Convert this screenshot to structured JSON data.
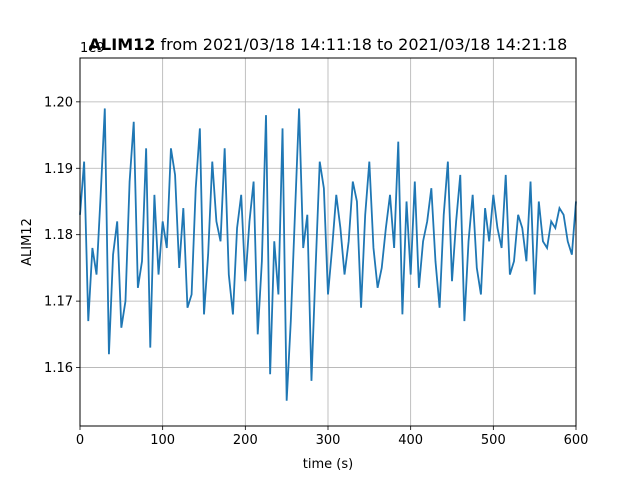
{
  "chart_data": {
    "type": "line",
    "title_bold": "ALIM12",
    "title_rest": " from 2021/03/18 14:11:18 to 2021/03/18 14:21:18",
    "xlabel": "time (s)",
    "ylabel": "ALIM12",
    "offset_label": "1e9",
    "xlim": [
      0,
      600
    ],
    "ylim": [
      1.1512,
      1.2066
    ],
    "x_ticks": [
      0,
      100,
      200,
      300,
      400,
      500,
      600
    ],
    "y_ticks": [
      1.16,
      1.17,
      1.18,
      1.19,
      1.2
    ],
    "y_tick_labels": [
      "1.16",
      "1.17",
      "1.18",
      "1.19",
      "1.20"
    ],
    "grid": true,
    "series_color": "#1f77b4",
    "series": [
      {
        "x_start": 0,
        "x_step": 5,
        "values": [
          1.183,
          1.191,
          1.167,
          1.178,
          1.174,
          1.186,
          1.199,
          1.162,
          1.177,
          1.182,
          1.166,
          1.17,
          1.188,
          1.197,
          1.172,
          1.176,
          1.193,
          1.163,
          1.186,
          1.174,
          1.182,
          1.178,
          1.193,
          1.189,
          1.175,
          1.184,
          1.169,
          1.171,
          1.187,
          1.196,
          1.168,
          1.177,
          1.191,
          1.182,
          1.179,
          1.193,
          1.174,
          1.168,
          1.181,
          1.186,
          1.173,
          1.182,
          1.188,
          1.165,
          1.176,
          1.198,
          1.159,
          1.179,
          1.171,
          1.196,
          1.155,
          1.167,
          1.183,
          1.199,
          1.178,
          1.183,
          1.158,
          1.175,
          1.191,
          1.187,
          1.171,
          1.178,
          1.186,
          1.181,
          1.174,
          1.179,
          1.188,
          1.185,
          1.169,
          1.183,
          1.191,
          1.178,
          1.172,
          1.175,
          1.181,
          1.186,
          1.178,
          1.194,
          1.168,
          1.185,
          1.174,
          1.188,
          1.172,
          1.179,
          1.182,
          1.187,
          1.176,
          1.169,
          1.183,
          1.191,
          1.173,
          1.182,
          1.189,
          1.167,
          1.179,
          1.186,
          1.175,
          1.171,
          1.184,
          1.179,
          1.186,
          1.181,
          1.178,
          1.189,
          1.174,
          1.176,
          1.183,
          1.181,
          1.176,
          1.188,
          1.171,
          1.185,
          1.179,
          1.178,
          1.182,
          1.181,
          1.184,
          1.183,
          1.179,
          1.177,
          1.185
        ]
      }
    ]
  }
}
